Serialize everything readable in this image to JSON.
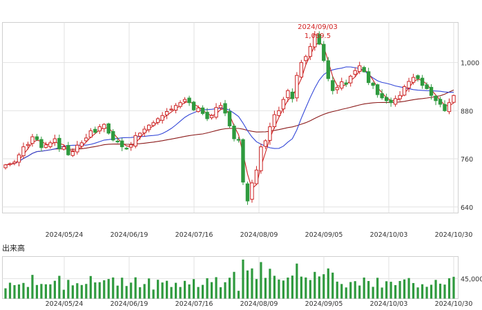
{
  "chart_data": {
    "type": "candlestick",
    "dates": [
      "2024/05/24",
      "2024/06/19",
      "2024/07/16",
      "2024/08/09",
      "2024/09/05",
      "2024/10/03",
      "2024/10/30"
    ],
    "price_axis": {
      "ticks": [
        640,
        760,
        880,
        "1,000"
      ],
      "ylim": [
        625,
        1100
      ]
    },
    "volume_label": "出来高",
    "volume_axis": {
      "ticks": [
        "45,000"
      ],
      "ylim": [
        0,
        95000
      ]
    },
    "highlight": {
      "date": "2024/09/03",
      "value": "1,069.5"
    },
    "colors": {
      "up": "#cc2222",
      "down": "#2f9a3e",
      "ma_short": "#cc2222",
      "ma_mid": "#3347d8",
      "ma_long": "#8b1a1a",
      "volume": "#2f9a3e",
      "grid": "#e2e2e2"
    },
    "series": {
      "close": [
        745,
        748,
        752,
        770,
        790,
        796,
        815,
        808,
        788,
        795,
        800,
        810,
        785,
        790,
        770,
        778,
        794,
        800,
        812,
        830,
        826,
        840,
        846,
        824,
        807,
        802,
        790,
        785,
        795,
        818,
        824,
        834,
        844,
        850,
        860,
        868,
        878,
        884,
        893,
        900,
        908,
        900,
        882,
        887,
        873,
        860,
        868,
        888,
        893,
        874,
        842,
        810,
        808,
        702,
        655,
        700,
        732,
        790,
        805,
        840,
        870,
        880,
        908,
        930,
        910,
        968,
        1000,
        1015,
        1040,
        1069.5,
        1046,
        1005,
        960,
        930,
        938,
        952,
        946,
        966,
        980,
        992,
        977,
        950,
        943,
        920,
        912,
        905,
        900,
        910,
        918,
        940,
        953,
        963,
        960,
        943,
        935,
        918,
        905,
        896,
        880,
        900,
        918
      ]
    }
  }
}
